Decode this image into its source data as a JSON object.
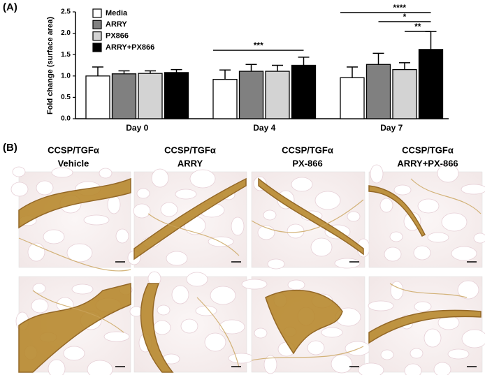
{
  "chart_data": {
    "type": "bar",
    "panel_label": "(A)",
    "y_label": "Fold change (surface area)",
    "categories": [
      "Day 0",
      "Day 4",
      "Day 7"
    ],
    "series": [
      {
        "name": "Media",
        "color": "#ffffff",
        "values": [
          1.0,
          0.92,
          0.96
        ],
        "errors": [
          0.21,
          0.22,
          0.25
        ]
      },
      {
        "name": "ARRY",
        "color": "#808080",
        "values": [
          1.05,
          1.11,
          1.27
        ],
        "errors": [
          0.07,
          0.16,
          0.26
        ]
      },
      {
        "name": "PX866",
        "color": "#d3d3d3",
        "values": [
          1.06,
          1.11,
          1.15
        ],
        "errors": [
          0.06,
          0.14,
          0.16
        ]
      },
      {
        "name": "ARRY+PX866",
        "color": "#000000",
        "values": [
          1.08,
          1.25,
          1.62
        ],
        "errors": [
          0.07,
          0.19,
          0.42
        ]
      }
    ],
    "ylim": [
      0,
      2.5
    ],
    "yticks": [
      {
        "value": 0,
        "label": "0.0"
      },
      0.5,
      {
        "value": 1,
        "label": "1.0"
      },
      1.5,
      {
        "value": 2,
        "label": "2.0"
      },
      2.5
    ],
    "annotations": [
      "***",
      "****",
      "*",
      "**"
    ]
  },
  "panel_b": {
    "label": "(B)",
    "columns": [
      {
        "line1": "CCSP/TGFα",
        "line2": "Vehicle"
      },
      {
        "line1": "CCSP/TGFα",
        "line2": "ARRY"
      },
      {
        "line1": "CCSP/TGFα",
        "line2": "PX-866"
      },
      {
        "line1": "CCSP/TGFα",
        "line2": "ARRY+PX-866"
      }
    ]
  }
}
